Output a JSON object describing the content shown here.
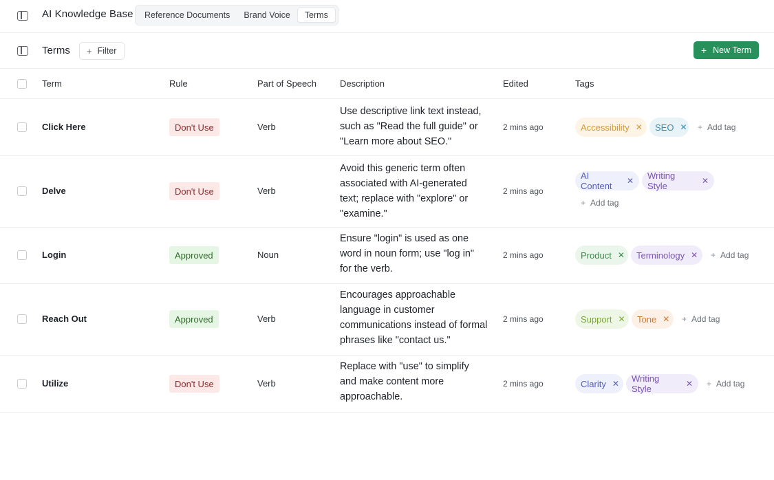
{
  "app": {
    "title": "AI Knowledge Base",
    "tabs": [
      {
        "label": "Reference Documents",
        "active": false
      },
      {
        "label": "Brand Voice",
        "active": false
      },
      {
        "label": "Terms",
        "active": true
      }
    ]
  },
  "section": {
    "title": "Terms",
    "filter_label": "Filter",
    "new_button_label": "New Term",
    "accent_color": "#27905b"
  },
  "table": {
    "columns": [
      "Term",
      "Rule",
      "Part of Speech",
      "Description",
      "Edited",
      "Tags"
    ],
    "add_tag_label": "Add tag",
    "rows": [
      {
        "term": "Click Here",
        "rule": "Don't Use",
        "part_of_speech": "Verb",
        "description": "Use descriptive link text instead, such as \"Read the full guide\" or \"Learn more about SEO.\"",
        "edited": "2 mins ago",
        "tags": [
          {
            "label": "Accessibility",
            "bg": "#fdf4e6",
            "fg": "#d49a38"
          },
          {
            "label": "SEO",
            "bg": "#e8f3f7",
            "fg": "#3b8bb0"
          }
        ]
      },
      {
        "term": "Delve",
        "rule": "Don't Use",
        "part_of_speech": "Verb",
        "description": "Avoid this generic term often associated with AI-generated text; replace with \"explore\" or \"examine.\"",
        "edited": "2 mins ago",
        "tags": [
          {
            "label": "AI Content",
            "bg": "#eef0fb",
            "fg": "#5560b8"
          },
          {
            "label": "Writing Style",
            "bg": "#f1ecf9",
            "fg": "#7a56b4"
          }
        ]
      },
      {
        "term": "Login",
        "rule": "Approved",
        "part_of_speech": "Noun",
        "description": "Ensure \"login\" is used as one word in noun form; use \"log in\" for the verb.",
        "edited": "2 mins ago",
        "tags": [
          {
            "label": "Product",
            "bg": "#eaf6ec",
            "fg": "#3d8a4c"
          },
          {
            "label": "Terminology",
            "bg": "#f1ecf9",
            "fg": "#7a56b4"
          }
        ]
      },
      {
        "term": "Reach Out",
        "rule": "Approved",
        "part_of_speech": "Verb",
        "description": "Encourages approachable language in customer communications instead of formal phrases like \"contact us.\"",
        "edited": "2 mins ago",
        "tags": [
          {
            "label": "Support",
            "bg": "#eef7e6",
            "fg": "#7aa63a"
          },
          {
            "label": "Tone",
            "bg": "#fdf0e6",
            "fg": "#d17a34"
          }
        ]
      },
      {
        "term": "Utilize",
        "rule": "Don't Use",
        "part_of_speech": "Verb",
        "description": "Replace with \"use\" to simplify and make content more approachable.",
        "edited": "2 mins ago",
        "tags": [
          {
            "label": "Clarity",
            "bg": "#eef0fb",
            "fg": "#5560b8"
          },
          {
            "label": "Writing Style",
            "bg": "#f1ecf9",
            "fg": "#7a56b4"
          }
        ]
      }
    ]
  }
}
